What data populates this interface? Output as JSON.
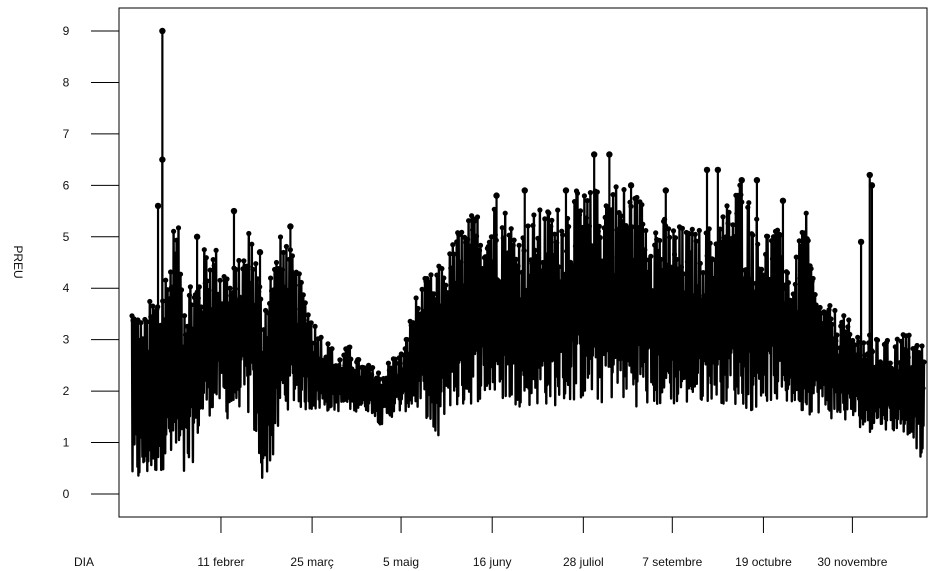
{
  "chart_data": {
    "type": "line",
    "xlabel": "DIA",
    "ylabel": "PREU",
    "title": "",
    "xlim": [
      0,
      365
    ],
    "ylim": [
      -0.2,
      9.4
    ],
    "x_ticks": [
      {
        "day": 41,
        "label": "11 febrer"
      },
      {
        "day": 83,
        "label": "25 març"
      },
      {
        "day": 124,
        "label": "5 maig"
      },
      {
        "day": 166,
        "label": "16 juny"
      },
      {
        "day": 208,
        "label": "28 juliol"
      },
      {
        "day": 249,
        "label": "7 setembre"
      },
      {
        "day": 291,
        "label": "19 octubre"
      },
      {
        "day": 332,
        "label": "30 novembre"
      }
    ],
    "y_ticks": [
      0,
      1,
      2,
      3,
      4,
      5,
      6,
      7,
      8,
      9
    ],
    "series": [
      {
        "color": "#000000",
        "envelope": {
          "day": [
            0,
            5,
            10,
            15,
            20,
            25,
            30,
            35,
            40,
            45,
            50,
            55,
            60,
            65,
            70,
            75,
            80,
            85,
            90,
            95,
            100,
            105,
            110,
            115,
            120,
            125,
            130,
            135,
            140,
            145,
            150,
            155,
            160,
            165,
            170,
            175,
            180,
            185,
            190,
            195,
            200,
            205,
            210,
            215,
            220,
            225,
            230,
            235,
            240,
            245,
            250,
            255,
            260,
            265,
            270,
            275,
            280,
            285,
            290,
            295,
            300,
            305,
            310,
            315,
            320,
            325,
            330,
            335,
            340,
            345,
            350,
            355,
            360,
            365
          ],
          "low": [
            0.0,
            0.2,
            0.3,
            0.5,
            0.3,
            0.0,
            1.0,
            1.5,
            1.6,
            1.4,
            1.7,
            1.4,
            0.2,
            0.6,
            1.6,
            1.7,
            1.6,
            1.6,
            1.6,
            1.6,
            1.6,
            1.6,
            1.6,
            1.3,
            1.5,
            1.6,
            1.6,
            1.6,
            0.7,
            1.7,
            1.6,
            1.7,
            1.8,
            1.8,
            1.8,
            1.7,
            1.7,
            1.7,
            1.7,
            1.7,
            1.7,
            1.8,
            1.8,
            1.7,
            1.8,
            1.8,
            1.7,
            1.7,
            1.6,
            1.7,
            1.7,
            1.7,
            1.7,
            1.8,
            1.8,
            1.7,
            1.7,
            1.6,
            1.7,
            1.8,
            1.7,
            1.7,
            1.5,
            1.6,
            1.5,
            1.4,
            1.4,
            1.3,
            1.2,
            1.3,
            1.2,
            1.2,
            1.1,
            0.4
          ],
          "high": [
            4.1,
            3.4,
            4.0,
            4.4,
            5.5,
            4.4,
            4.4,
            5.0,
            4.8,
            4.4,
            4.6,
            5.4,
            4.0,
            4.7,
            5.2,
            4.5,
            4.0,
            3.3,
            3.0,
            2.7,
            2.9,
            2.6,
            2.5,
            2.4,
            2.7,
            2.8,
            3.8,
            4.2,
            4.4,
            4.6,
            5.2,
            5.4,
            5.6,
            5.7,
            5.8,
            5.4,
            5.2,
            5.5,
            5.6,
            5.6,
            5.8,
            5.9,
            5.9,
            6.0,
            6.2,
            6.1,
            6.0,
            5.8,
            5.6,
            5.4,
            5.3,
            5.2,
            5.2,
            5.2,
            5.4,
            5.8,
            6.2,
            5.8,
            5.2,
            5.3,
            5.0,
            4.3,
            5.7,
            4.0,
            3.7,
            3.6,
            3.4,
            3.2,
            3.1,
            3.0,
            3.0,
            3.2,
            3.1,
            3.0
          ]
        },
        "spikes": [
          {
            "day": 14,
            "value": 9.0
          },
          {
            "day": 14,
            "value": 6.5
          },
          {
            "day": 12,
            "value": 5.6
          },
          {
            "day": 30,
            "value": 5.0
          },
          {
            "day": 47,
            "value": 5.5
          },
          {
            "day": 59,
            "value": 4.7
          },
          {
            "day": 73,
            "value": 5.2
          },
          {
            "day": 168,
            "value": 5.8
          },
          {
            "day": 181,
            "value": 5.9
          },
          {
            "day": 200,
            "value": 5.9
          },
          {
            "day": 213,
            "value": 6.6
          },
          {
            "day": 220,
            "value": 6.6
          },
          {
            "day": 230,
            "value": 6.0
          },
          {
            "day": 246,
            "value": 5.9
          },
          {
            "day": 265,
            "value": 6.3
          },
          {
            "day": 270,
            "value": 6.3
          },
          {
            "day": 281,
            "value": 6.1
          },
          {
            "day": 288,
            "value": 6.1
          },
          {
            "day": 300,
            "value": 5.7
          },
          {
            "day": 340,
            "value": 6.2
          },
          {
            "day": 341,
            "value": 6.0
          },
          {
            "day": 336,
            "value": 4.9
          }
        ]
      }
    ]
  }
}
